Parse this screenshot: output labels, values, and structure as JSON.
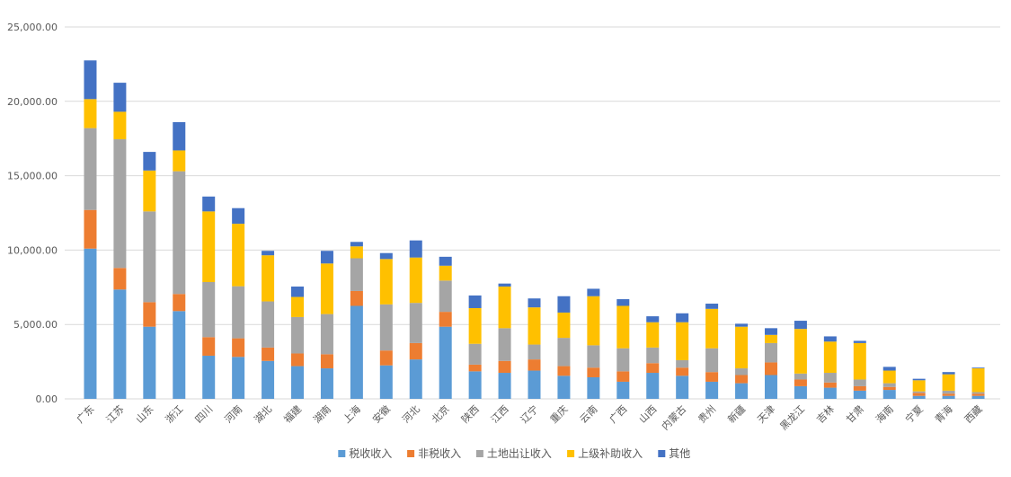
{
  "chart_data": {
    "type": "bar",
    "stacked": true,
    "ylim": [
      0,
      25000
    ],
    "yticks": [
      "0.00",
      "5,000.00",
      "10,000.00",
      "15,000.00",
      "20,000.00",
      "25,000.00"
    ],
    "ytick_values": [
      0,
      5000,
      10000,
      15000,
      20000,
      25000
    ],
    "grid": true,
    "legend_position": "bottom",
    "categories": [
      "广东",
      "江苏",
      "山东",
      "浙江",
      "四川",
      "河南",
      "湖北",
      "福建",
      "湖南",
      "上海",
      "安徽",
      "河北",
      "北京",
      "陕西",
      "江西",
      "辽宁",
      "重庆",
      "云南",
      "广西",
      "山西",
      "内蒙古",
      "贵州",
      "新疆",
      "天津",
      "黑龙江",
      "吉林",
      "甘肃",
      "海南",
      "宁夏",
      "青海",
      "西藏"
    ],
    "series": [
      {
        "name": "税收收入",
        "color": "#5b9bd5",
        "values": [
          10100,
          7350,
          4850,
          5900,
          2900,
          2820,
          2550,
          2200,
          2050,
          6250,
          2250,
          2650,
          4850,
          1850,
          1750,
          1900,
          1550,
          1450,
          1150,
          1750,
          1550,
          1150,
          1050,
          1600,
          850,
          750,
          550,
          600,
          200,
          200,
          200
        ]
      },
      {
        "name": "非税收入",
        "color": "#ed7d31",
        "values": [
          2600,
          1450,
          1650,
          1150,
          1250,
          1250,
          900,
          850,
          950,
          1000,
          1000,
          1100,
          1000,
          450,
          800,
          750,
          650,
          650,
          700,
          650,
          550,
          650,
          550,
          850,
          450,
          350,
          300,
          200,
          200,
          150,
          150
        ]
      },
      {
        "name": "土地出让收入",
        "color": "#a5a5a5",
        "values": [
          5500,
          8650,
          6100,
          8250,
          3700,
          3500,
          3100,
          2450,
          2700,
          2200,
          3100,
          2700,
          2100,
          1400,
          2200,
          1000,
          1900,
          1500,
          1550,
          1050,
          500,
          1600,
          450,
          1300,
          400,
          650,
          450,
          250,
          100,
          200,
          100
        ]
      },
      {
        "name": "上级补助收入",
        "color": "#ffc000",
        "values": [
          1950,
          1850,
          2750,
          1400,
          4750,
          4200,
          3100,
          1350,
          3400,
          800,
          3050,
          3050,
          1000,
          2400,
          2800,
          2500,
          1700,
          3300,
          2850,
          1700,
          2550,
          2650,
          2800,
          550,
          3000,
          2100,
          2450,
          850,
          750,
          1100,
          1600
        ]
      },
      {
        "name": "其他",
        "color": "#4472c4",
        "values": [
          2600,
          1950,
          1250,
          1900,
          1000,
          1050,
          300,
          700,
          850,
          300,
          400,
          1150,
          600,
          850,
          200,
          600,
          1100,
          500,
          450,
          400,
          600,
          350,
          200,
          450,
          550,
          350,
          150,
          250,
          100,
          150,
          50
        ]
      }
    ]
  }
}
